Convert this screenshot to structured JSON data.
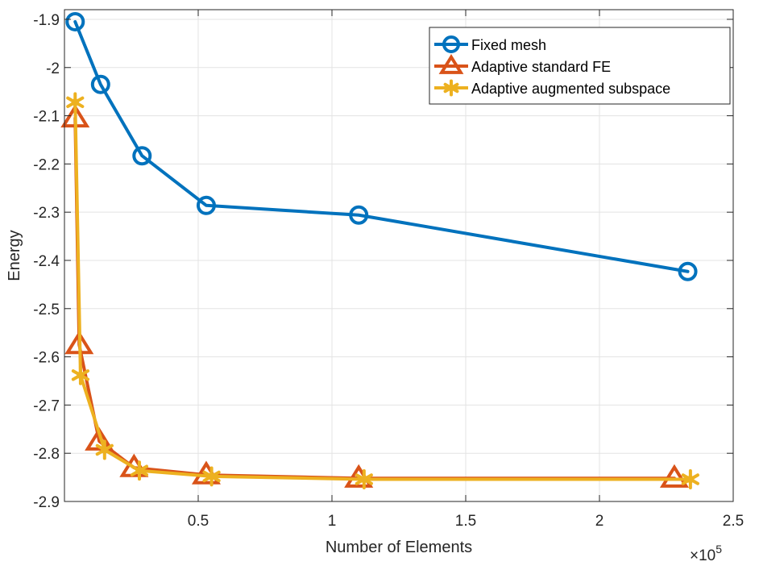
{
  "chart_data": {
    "type": "line",
    "title": "",
    "xlabel": "Number of Elements",
    "ylabel": "Energy",
    "x_exponent_label": "×10",
    "x_exponent_power": "5",
    "xlim": [
      0.0,
      2.5
    ],
    "ylim": [
      -2.9,
      -1.88
    ],
    "grid": true,
    "legend_position": "top-right",
    "x_ticks": [
      0.5,
      1,
      1.5,
      2,
      2.5
    ],
    "x_tick_labels": [
      "0.5",
      "1",
      "1.5",
      "2",
      "2.5"
    ],
    "y_ticks": [
      -1.9,
      -2.0,
      -2.1,
      -2.2,
      -2.3,
      -2.4,
      -2.5,
      -2.6,
      -2.7,
      -2.8,
      -2.9
    ],
    "y_tick_labels": [
      "-1.9",
      "-2",
      "-2.1",
      "-2.2",
      "-2.3",
      "-2.4",
      "-2.5",
      "-2.6",
      "-2.7",
      "-2.8",
      "-2.9"
    ],
    "series": [
      {
        "name": "Fixed mesh",
        "color": "#0072BD",
        "marker": "circle",
        "x": [
          0.04,
          0.135,
          0.29,
          0.53,
          1.1,
          2.33
        ],
        "y": [
          -1.905,
          -2.035,
          -2.183,
          -2.286,
          -2.306,
          -2.423
        ]
      },
      {
        "name": "Adaptive standard FE",
        "color": "#D95319",
        "marker": "triangle",
        "x": [
          0.04,
          0.055,
          0.13,
          0.26,
          0.53,
          1.1,
          2.28
        ],
        "y": [
          -2.105,
          -2.575,
          -2.775,
          -2.83,
          -2.845,
          -2.852,
          -2.852
        ]
      },
      {
        "name": "Adaptive augmented subspace",
        "color": "#EDB120",
        "marker": "asterisk",
        "x": [
          0.04,
          0.06,
          0.15,
          0.28,
          0.55,
          1.12,
          2.34
        ],
        "y": [
          -2.072,
          -2.638,
          -2.793,
          -2.836,
          -2.848,
          -2.854,
          -2.854
        ]
      }
    ]
  }
}
